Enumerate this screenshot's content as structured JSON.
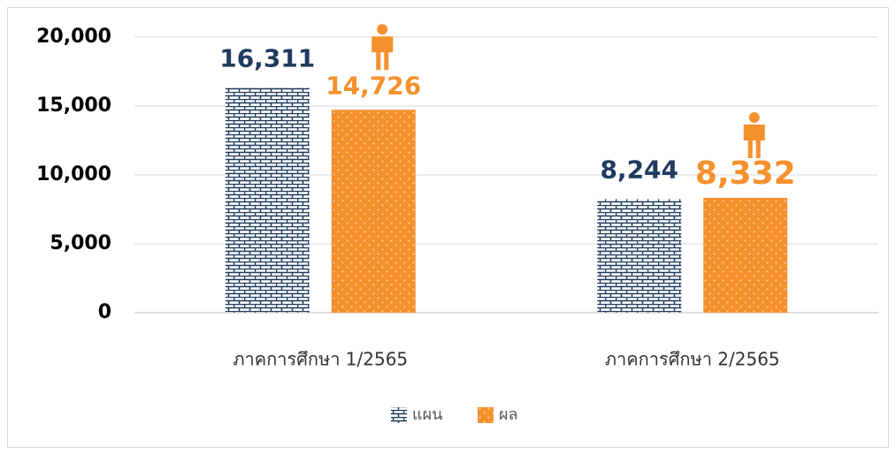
{
  "chart_data": {
    "type": "bar",
    "categories": [
      "ภาคการศึกษา 1/2565",
      "ภาคการศึกษา 2/2565"
    ],
    "series": [
      {
        "name": "แผน",
        "color": "#1f3b5f",
        "values": [
          16311,
          8244
        ],
        "value_labels": [
          "16,311",
          "8,244"
        ]
      },
      {
        "name": "ผล",
        "color": "#f5912d",
        "values": [
          14726,
          8332
        ],
        "value_labels": [
          "14,726",
          "8,332"
        ]
      }
    ],
    "ylim": [
      0,
      20000
    ],
    "yticks": [
      0,
      {
        "value": 5000,
        "label": "5,000"
      },
      {
        "value": 10000,
        "label": "10,000"
      },
      {
        "value": 15000,
        "label": "15,000"
      },
      {
        "value": 20000,
        "label": "20,000"
      }
    ],
    "grid": true,
    "legend": "bottom"
  }
}
